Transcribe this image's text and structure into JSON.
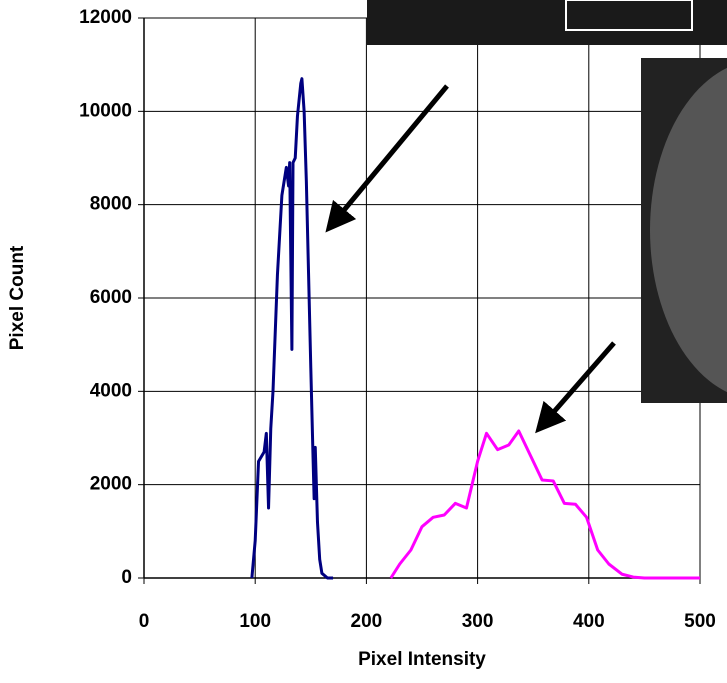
{
  "chart_data": {
    "type": "line",
    "xlabel": "Pixel Intensity",
    "ylabel": "Pixel Count",
    "xlim": [
      0,
      500
    ],
    "xticks": [
      0,
      100,
      200,
      300,
      400,
      500
    ],
    "ylim": [
      0,
      12000
    ],
    "yticks": [
      0,
      2000,
      4000,
      6000,
      8000,
      10000,
      12000
    ],
    "grid": true,
    "series": [
      {
        "color": "#000080",
        "x": [
          97,
          100,
          103,
          108,
          110,
          112,
          114,
          116,
          120,
          124,
          128,
          130,
          131,
          133,
          134,
          136,
          138,
          141,
          142,
          144,
          146,
          148,
          150,
          152,
          153,
          154,
          156,
          158,
          160,
          165,
          170
        ],
        "values": [
          0,
          800,
          2500,
          2700,
          3100,
          1500,
          3200,
          4000,
          6500,
          8200,
          8800,
          8400,
          8900,
          4900,
          8900,
          9000,
          9900,
          10600,
          10700,
          10000,
          8500,
          6500,
          4500,
          2600,
          1700,
          2800,
          1200,
          400,
          100,
          0,
          0
        ]
      },
      {
        "color": "#ff00ff",
        "x": [
          222,
          230,
          240,
          250,
          260,
          270,
          280,
          290,
          300,
          308,
          318,
          328,
          337,
          348,
          358,
          368,
          378,
          388,
          398,
          408,
          418,
          430,
          440,
          450,
          500
        ],
        "values": [
          0,
          300,
          600,
          1100,
          1300,
          1350,
          1600,
          1500,
          2500,
          3100,
          2750,
          2850,
          3150,
          2600,
          2100,
          2080,
          1600,
          1580,
          1300,
          600,
          300,
          80,
          20,
          0,
          0
        ]
      }
    ]
  }
}
